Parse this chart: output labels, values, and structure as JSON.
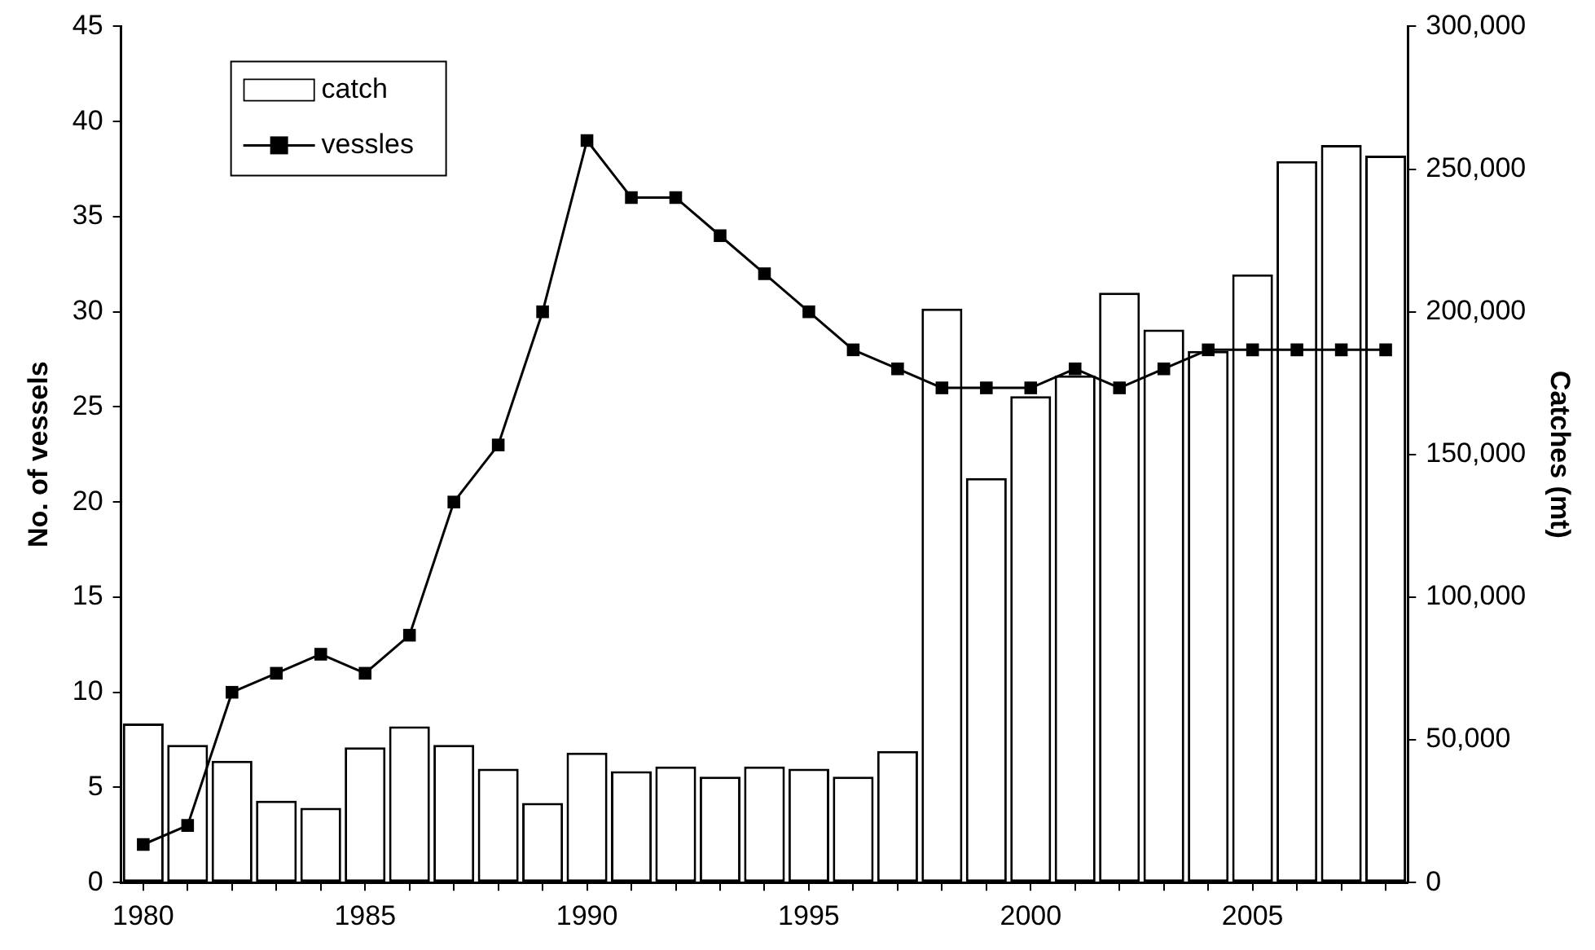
{
  "chart_data": {
    "type": "bar",
    "xlabel": null,
    "ylabel": "No. of vessels",
    "y2label": "Catches (mt)",
    "x": [
      1980,
      1981,
      1982,
      1983,
      1984,
      1985,
      1986,
      1987,
      1988,
      1989,
      1990,
      1991,
      1992,
      1993,
      1994,
      1995,
      1996,
      1997,
      1998,
      1999,
      2000,
      2001,
      2002,
      2003,
      2004,
      2005,
      2006,
      2007,
      2008
    ],
    "series": [
      {
        "name": "catch",
        "axis": "y2",
        "color": "#ffffff",
        "values": [
          55700,
          48200,
          42700,
          28700,
          26200,
          47400,
          54700,
          48200,
          39900,
          27900,
          45500,
          39000,
          40700,
          37100,
          40700,
          39900,
          37100,
          46100,
          201100,
          141700,
          170400,
          177700,
          206700,
          193800,
          186300,
          213100,
          252800,
          258400,
          254700
        ]
      },
      {
        "name": "vessles",
        "type": "line",
        "axis": "y",
        "color": "#000000",
        "marker": "square",
        "values": [
          2,
          3,
          10,
          11,
          12,
          11,
          13,
          20,
          23,
          30,
          39,
          36,
          36,
          34,
          32,
          30,
          28,
          27,
          26,
          26,
          26,
          27,
          26,
          27,
          28,
          28,
          28,
          28,
          28
        ]
      }
    ],
    "xlim": [
      1979.5,
      2008.5
    ],
    "xticks": [
      1980,
      {
        "value": 1981,
        "label": null
      },
      {
        "value": 1982,
        "label": null
      },
      {
        "value": 1983,
        "label": null
      },
      {
        "value": 1984,
        "label": null
      },
      1985,
      {
        "value": 1986,
        "label": null
      },
      {
        "value": 1987,
        "label": null
      },
      {
        "value": 1988,
        "label": null
      },
      {
        "value": 1989,
        "label": null
      },
      1990,
      {
        "value": 1991,
        "label": null
      },
      {
        "value": 1992,
        "label": null
      },
      {
        "value": 1993,
        "label": null
      },
      {
        "value": 1994,
        "label": null
      },
      1995,
      {
        "value": 1996,
        "label": null
      },
      {
        "value": 1997,
        "label": null
      },
      {
        "value": 1998,
        "label": null
      },
      {
        "value": 1999,
        "label": null
      },
      2000,
      {
        "value": 2001,
        "label": null
      },
      {
        "value": 2002,
        "label": null
      },
      {
        "value": 2003,
        "label": null
      },
      {
        "value": 2004,
        "label": null
      },
      2005,
      {
        "value": 2006,
        "label": null
      },
      {
        "value": 2007,
        "label": null
      },
      {
        "value": 2008,
        "label": null
      }
    ],
    "ylim": [
      0,
      45
    ],
    "yticks": [
      0,
      5,
      10,
      15,
      20,
      25,
      30,
      35,
      40,
      45
    ],
    "y2lim": [
      0,
      300000
    ],
    "y2ticks": [
      0,
      {
        "value": 50000,
        "label": "50,000"
      },
      {
        "value": 100000,
        "label": "100,000"
      },
      {
        "value": 150000,
        "label": "150,000"
      },
      {
        "value": 200000,
        "label": "200,000"
      },
      {
        "value": 250000,
        "label": "250,000"
      },
      {
        "value": 300000,
        "label": "300,000"
      }
    ],
    "grid": false,
    "legend": "top left",
    "line_style": "solid"
  }
}
